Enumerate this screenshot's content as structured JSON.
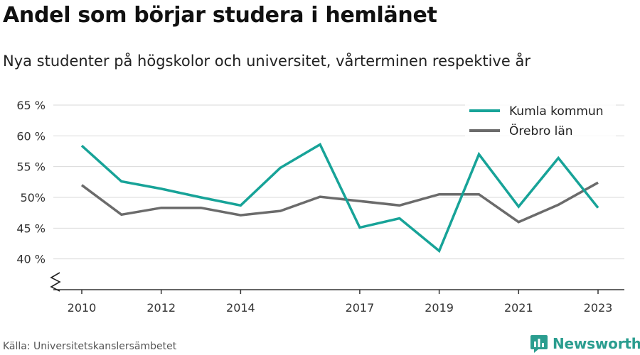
{
  "title": "Andel som börjar studera i hemlänet",
  "subtitle": "Nya studenter på högskolor och universitet, vårterminen respektive år",
  "source": "Källa: Universitetskanslersämbetet",
  "brand": {
    "name": "Newsworthy",
    "icon": "newsworthy-logo-icon"
  },
  "colors": {
    "kumla": "#17a398",
    "orebro": "#6b6b6b",
    "grid": "#d9d9d9",
    "axis": "#333333"
  },
  "chart_data": {
    "type": "line",
    "title": "Andel som börjar studera i hemlänet",
    "subtitle": "Nya studenter på högskolor och universitet, vårterminen respektive år",
    "x": [
      2010,
      2011,
      2012,
      2013,
      2014,
      2015,
      2016,
      2017,
      2018,
      2019,
      2020,
      2021,
      2022,
      2023
    ],
    "x_ticks": [
      "2010",
      "2012",
      "2014",
      "2017",
      "2019",
      "2021",
      "2023"
    ],
    "y_ticks": [
      "40 %",
      "45 %",
      "50%",
      "55 %",
      "60 %",
      "65 %"
    ],
    "y_tick_values": [
      40,
      45,
      50,
      55,
      60,
      65
    ],
    "ylim": [
      35,
      65
    ],
    "y_axis_break": true,
    "grid": true,
    "legend_position": "top-right",
    "series": [
      {
        "name": "Kumla kommun",
        "color": "#17a398",
        "values": [
          58.4,
          52.6,
          51.4,
          50.0,
          48.7,
          54.8,
          58.6,
          45.1,
          46.6,
          41.3,
          57.0,
          48.5,
          56.4,
          48.3
        ]
      },
      {
        "name": "Örebro län",
        "color": "#6b6b6b",
        "values": [
          52.0,
          47.2,
          48.3,
          48.3,
          47.1,
          47.8,
          50.1,
          49.4,
          48.7,
          50.5,
          50.5,
          46.0,
          48.8,
          52.4
        ]
      }
    ]
  }
}
